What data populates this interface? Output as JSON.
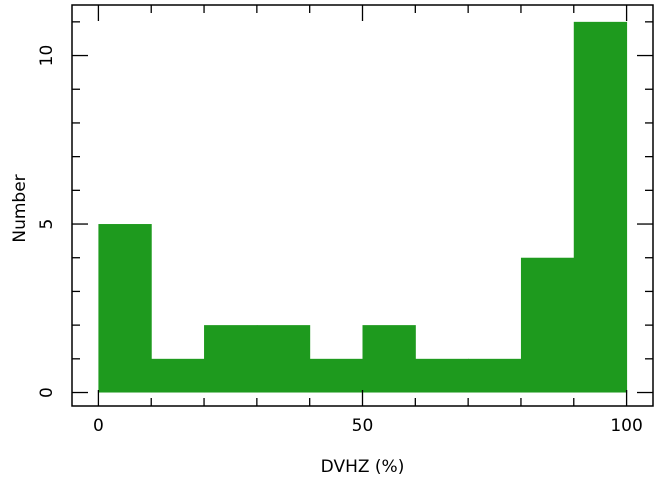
{
  "chart_data": {
    "type": "bar",
    "subtype": "histogram",
    "xlabel": "DVHZ (%)",
    "ylabel": "Number",
    "xlim": [
      -5,
      105
    ],
    "ylim": [
      -0.4,
      11.5
    ],
    "xticks": [
      0,
      50,
      100
    ],
    "yticks": [
      0,
      5,
      10
    ],
    "bins": [
      {
        "x0": 0,
        "x1": 10,
        "count": 5
      },
      {
        "x0": 10,
        "x1": 20,
        "count": 1
      },
      {
        "x0": 20,
        "x1": 30,
        "count": 2
      },
      {
        "x0": 30,
        "x1": 40,
        "count": 2
      },
      {
        "x0": 40,
        "x1": 50,
        "count": 1
      },
      {
        "x0": 50,
        "x1": 60,
        "count": 2
      },
      {
        "x0": 60,
        "x1": 70,
        "count": 1
      },
      {
        "x0": 70,
        "x1": 80,
        "count": 1
      },
      {
        "x0": 80,
        "x1": 90,
        "count": 4
      },
      {
        "x0": 90,
        "x1": 100,
        "count": 11
      }
    ],
    "bar_color": "#1e9a1e",
    "grid": false,
    "legend": "none"
  }
}
